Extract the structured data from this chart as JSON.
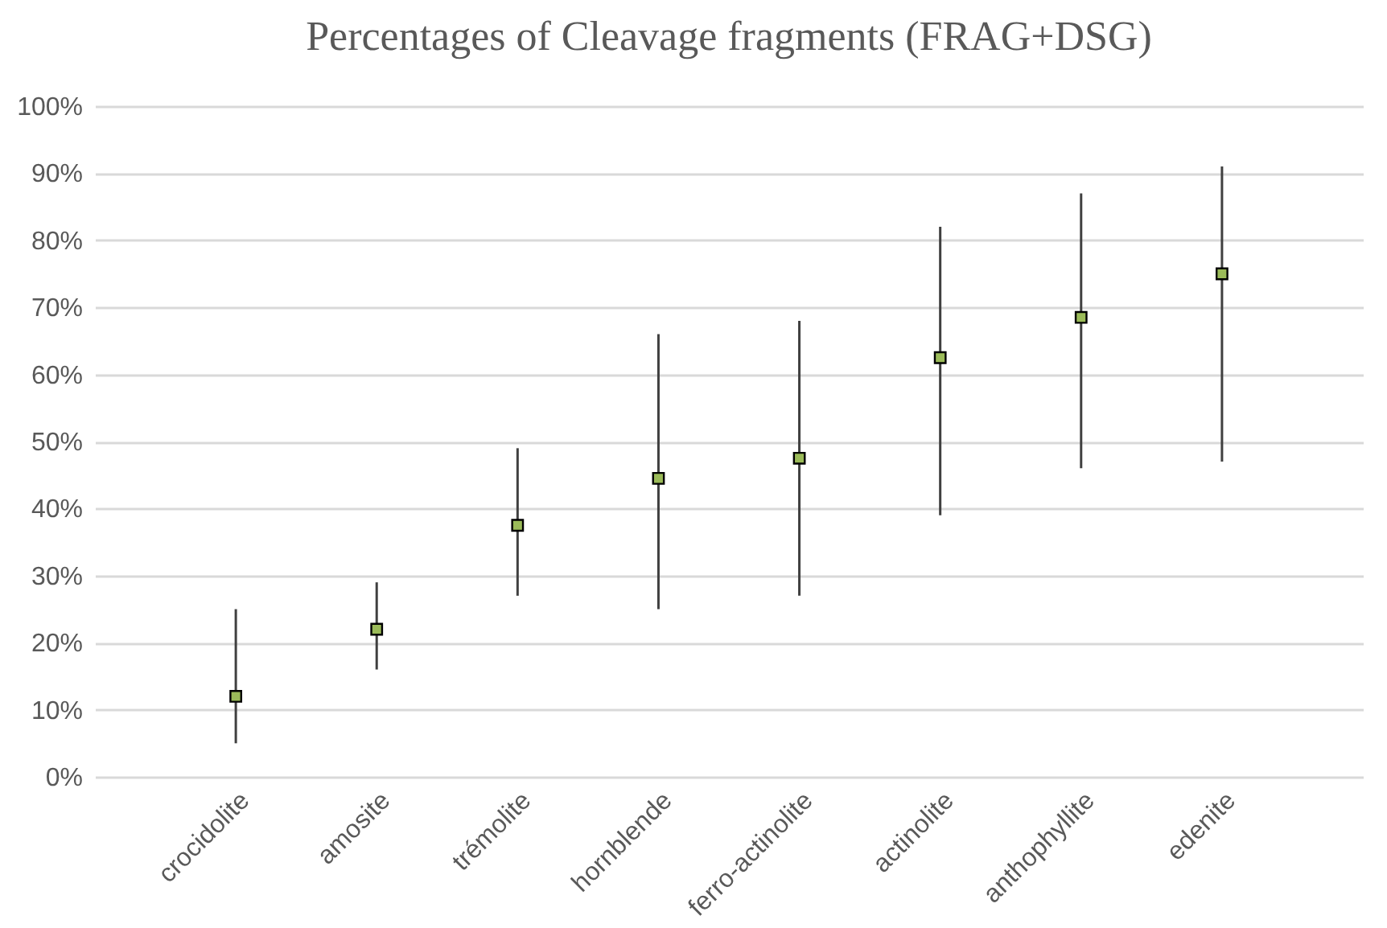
{
  "chart_data": {
    "type": "scatter",
    "title": "Percentages of Cleavage fragments (FRAG+DSG)",
    "categories": [
      "crocidolite",
      "amosite",
      "trémolite",
      "hornblende",
      "ferro-actinolite",
      "actinolite",
      "anthophyllite",
      "edenite"
    ],
    "series": [
      {
        "color": "#9bbb59",
        "values": [
          12,
          22,
          37.5,
          44.5,
          47.5,
          62.5,
          68.5,
          75
        ],
        "errors": [
          [
            5,
            25
          ],
          [
            16,
            29
          ],
          [
            27,
            49
          ],
          [
            25,
            66
          ],
          [
            27,
            68
          ],
          [
            39,
            82
          ],
          [
            46,
            87
          ],
          [
            47,
            91
          ]
        ]
      }
    ],
    "ylim": [
      0,
      100
    ],
    "yticks": [
      {
        "value": 0,
        "label": "0%"
      },
      {
        "value": 10,
        "label": "10%"
      },
      {
        "value": 20,
        "label": "20%"
      },
      {
        "value": 30,
        "label": "30%"
      },
      {
        "value": 40,
        "label": "40%"
      },
      {
        "value": 50,
        "label": "50%"
      },
      {
        "value": 60,
        "label": "60%"
      },
      {
        "value": 70,
        "label": "70%"
      },
      {
        "value": 80,
        "label": "80%"
      },
      {
        "value": 90,
        "label": "90%"
      },
      {
        "value": 100,
        "label": "100%"
      }
    ],
    "grid": "y",
    "marker": "square"
  }
}
